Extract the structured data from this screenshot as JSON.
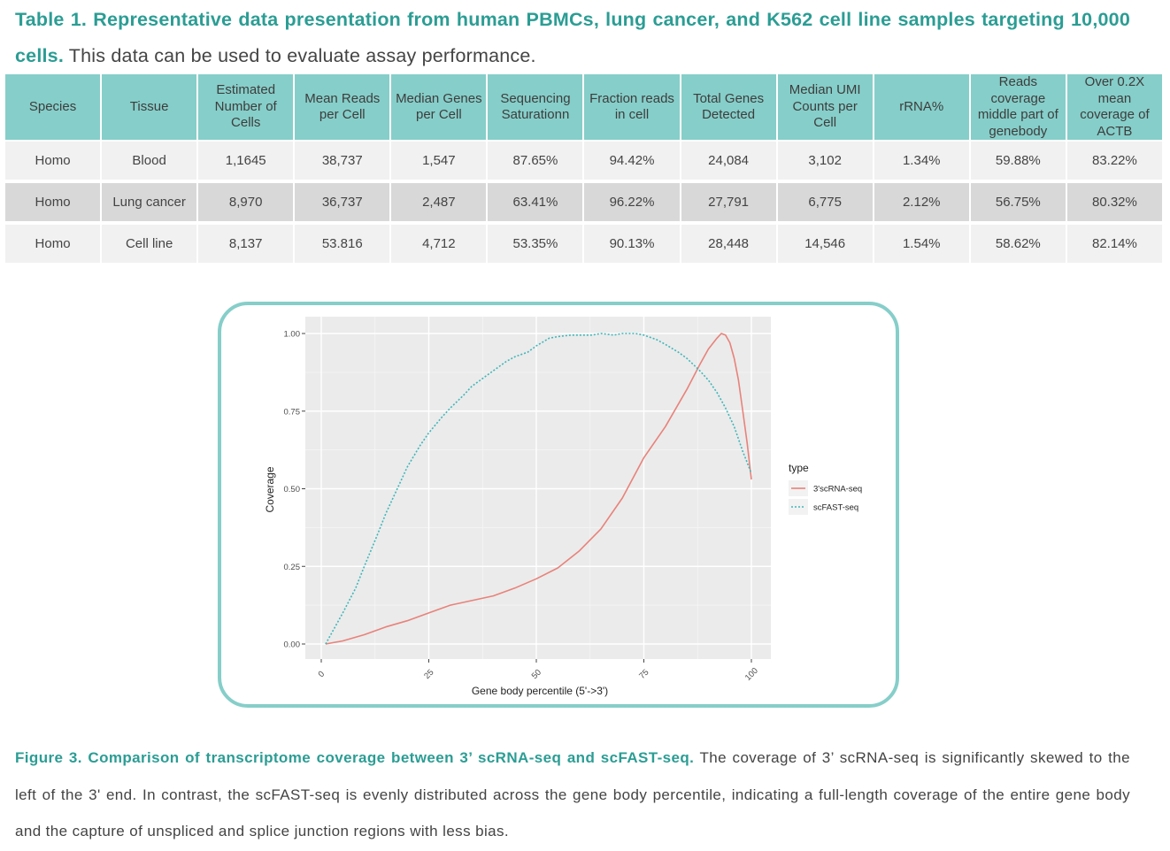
{
  "table_caption": {
    "bold": "Table 1. Representative data presentation from human PBMCs, lung cancer, and K562 cell line samples targeting 10,000 cells.",
    "text": " This data can be used to evaluate assay performance."
  },
  "table": {
    "headers": [
      "Species",
      "Tissue",
      "Estimated Number of Cells",
      "Mean Reads per Cell",
      "Median Genes per Cell",
      "Sequencing Saturationn",
      "Fraction reads in cell",
      "Total Genes Detected",
      "Median UMI Counts per Cell",
      "rRNA%",
      "Reads coverage middle part of genebody",
      "Over 0.2X mean coverage of ACTB"
    ],
    "rows": [
      [
        "Homo",
        "Blood",
        "1,1645",
        "38,737",
        "1,547",
        "87.65%",
        "94.42%",
        "24,084",
        "3,102",
        "1.34%",
        "59.88%",
        "83.22%"
      ],
      [
        "Homo",
        "Lung cancer",
        "8,970",
        "36,737",
        "2,487",
        "63.41%",
        "96.22%",
        "27,791",
        "6,775",
        "2.12%",
        "56.75%",
        "80.32%"
      ],
      [
        "Homo",
        "Cell line",
        "8,137",
        "53.816",
        "4,712",
        "53.35%",
        "90.13%",
        "28,448",
        "14,546",
        "1.54%",
        "58.62%",
        "82.14%"
      ]
    ]
  },
  "chart_data": {
    "type": "line",
    "xlabel": "Gene body percentile (5'->3')",
    "ylabel": "Coverage",
    "xlim": [
      0,
      100
    ],
    "ylim": [
      0,
      1
    ],
    "x_ticks": [
      "0",
      "25",
      "50",
      "75",
      "100"
    ],
    "y_ticks": [
      "0.00",
      "0.25",
      "0.50",
      "0.75",
      "1.00"
    ],
    "grid": true,
    "legend": {
      "title": "type",
      "position": "right"
    },
    "series": [
      {
        "name": "3'scRNA-seq",
        "color": "#e8827a",
        "dash": "solid",
        "x": [
          1,
          5,
          10,
          15,
          20,
          25,
          30,
          35,
          40,
          45,
          50,
          55,
          60,
          65,
          70,
          75,
          80,
          85,
          88,
          90,
          92,
          93,
          94,
          95,
          96,
          97,
          98,
          99,
          100
        ],
        "y": [
          0.0,
          0.01,
          0.03,
          0.055,
          0.075,
          0.1,
          0.125,
          0.14,
          0.155,
          0.18,
          0.21,
          0.245,
          0.3,
          0.37,
          0.47,
          0.6,
          0.7,
          0.82,
          0.9,
          0.95,
          0.985,
          1.0,
          0.995,
          0.97,
          0.92,
          0.85,
          0.75,
          0.65,
          0.53
        ]
      },
      {
        "name": "scFAST-seq",
        "color": "#3fb6b9",
        "dash": "dotted",
        "x": [
          1,
          3,
          5,
          8,
          10,
          13,
          15,
          18,
          20,
          23,
          25,
          28,
          30,
          33,
          35,
          38,
          40,
          43,
          45,
          48,
          50,
          53,
          55,
          58,
          60,
          63,
          65,
          68,
          70,
          73,
          75,
          78,
          80,
          83,
          85,
          88,
          90,
          92,
          94,
          96,
          98,
          100
        ],
        "y": [
          0.0,
          0.05,
          0.1,
          0.18,
          0.25,
          0.35,
          0.42,
          0.51,
          0.57,
          0.64,
          0.68,
          0.73,
          0.76,
          0.8,
          0.83,
          0.86,
          0.88,
          0.91,
          0.925,
          0.94,
          0.96,
          0.985,
          0.99,
          0.995,
          0.995,
          0.995,
          1.0,
          0.995,
          1.0,
          1.0,
          0.995,
          0.98,
          0.965,
          0.94,
          0.92,
          0.88,
          0.85,
          0.81,
          0.76,
          0.7,
          0.62,
          0.55
        ]
      }
    ]
  },
  "figure_caption": {
    "bold": "Figure 3. Comparison of transcriptome coverage between 3’ scRNA-seq and scFAST-seq.",
    "text": " The coverage of 3’ scRNA-seq is significantly skewed to the left of the 3' end. In contrast, the scFAST-seq is evenly distributed across the gene body percentile, indicating a full-length coverage of the entire gene body and the capture of unspliced and splice junction regions with less bias."
  }
}
